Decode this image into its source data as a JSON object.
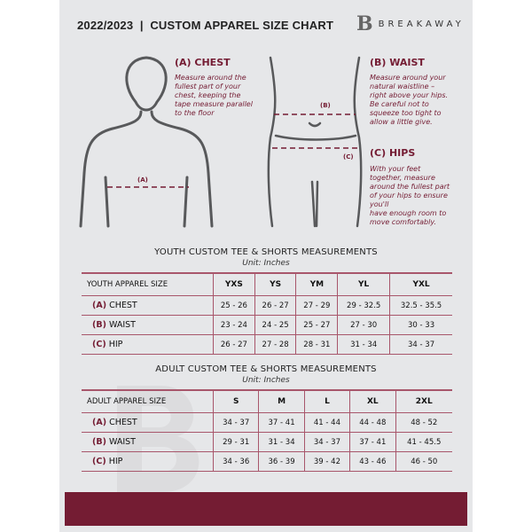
{
  "header": {
    "title": "2022/2023  |  CUSTOM APPAREL SIZE CHART",
    "brand": "BREAKAWAY",
    "logo_letter": "B"
  },
  "sections": {
    "chest": {
      "title": "(A) CHEST",
      "text": "Measure around the\nfullest part of your\nchest, keeping the\ntape measure parallel\nto the floor",
      "marker": "(A)"
    },
    "waist": {
      "title": "(B) WAIST",
      "text": "Measure around your\nnatural waistline –\nright above your hips.\nBe careful not to\nsqueeze too tight to\nallow a little give.",
      "marker": "(B)"
    },
    "hips": {
      "title": "(C) HIPS",
      "text": "With your feet\ntogether, measure\naround the fullest part\nof your hips to ensure\nyou'll\nhave enough room to\nmove comfortably.",
      "marker": "(C)"
    }
  },
  "colors": {
    "accent": "#741c33",
    "background": "#e6e7e9"
  },
  "youth": {
    "title": "YOUTH CUSTOM TEE & SHORTS MEASUREMENTS",
    "unit": "Unit: Inches",
    "header": "YOUTH APPAREL SIZE",
    "sizes": [
      "YXS",
      "YS",
      "YM",
      "YL",
      "YXL"
    ],
    "rows": [
      {
        "code": "(A)",
        "name": "CHEST",
        "values": [
          "25 - 26",
          "26 - 27",
          "27 - 29",
          "29 - 32.5",
          "32.5 - 35.5"
        ]
      },
      {
        "code": "(B)",
        "name": "WAIST",
        "values": [
          "23 - 24",
          "24 - 25",
          "25 - 27",
          "27 - 30",
          "30 - 33"
        ]
      },
      {
        "code": "(C)",
        "name": "HIP",
        "values": [
          "26 - 27",
          "27 - 28",
          "28 - 31",
          "31 - 34",
          "34 - 37"
        ]
      }
    ]
  },
  "adult": {
    "title": "ADULT CUSTOM TEE & SHORTS MEASUREMENTS",
    "unit": "Unit: Inches",
    "header": "ADULT APPAREL SIZE",
    "sizes": [
      "S",
      "M",
      "L",
      "XL",
      "2XL"
    ],
    "rows": [
      {
        "code": "(A)",
        "name": "CHEST",
        "values": [
          "34 - 37",
          "37 - 41",
          "41 - 44",
          "44 - 48",
          "48 - 52"
        ]
      },
      {
        "code": "(B)",
        "name": "WAIST",
        "values": [
          "29 - 31",
          "31 - 34",
          "34 - 37",
          "37 - 41",
          "41 - 45.5"
        ]
      },
      {
        "code": "(C)",
        "name": "HIP",
        "values": [
          "34 - 36",
          "36 - 39",
          "39 - 42",
          "43 - 46",
          "46 - 50"
        ]
      }
    ]
  }
}
